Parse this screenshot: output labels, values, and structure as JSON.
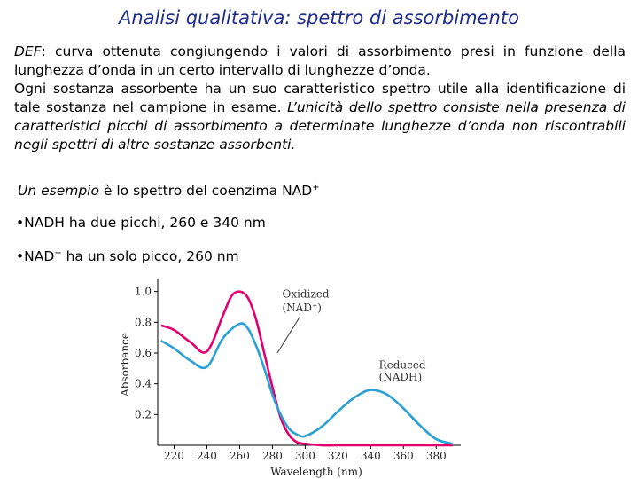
{
  "title": "Analisi qualitativa: spettro di assorbimento",
  "def": {
    "label": "DEF",
    "text1": ": curva ottenuta congiungendo i valori di assorbimento presi in funzione della lunghezza d’onda in un certo intervallo di lunghezze d’onda.",
    "text2": "Ogni sostanza assorbente ha un suo caratteristico spettro utile alla identificazione di tale sostanza nel campione in esame. ",
    "text3": "L’unicità dello spettro consiste nella presenza di caratteristici picchi di assorbimento a determinate lunghezze d’onda non riscontrabili negli spettri di altre sostanze assorbenti."
  },
  "example": {
    "prefix": "Un esempio",
    "rest": " è lo spettro del coenzima NAD",
    "sup": "+"
  },
  "bullets": [
    {
      "text": "•NADH ha due picchi, 260 e 340 nm",
      "sup": "",
      "rest": ""
    },
    {
      "text": "•NAD",
      "sup": "+",
      "rest": " ha un solo picco, 260 nm"
    }
  ],
  "chart_data": {
    "type": "line",
    "xlabel": "Wavelength (nm)",
    "ylabel": "Absorbance",
    "xlim": [
      210,
      395
    ],
    "ylim": [
      0,
      1.05
    ],
    "x_ticks": [
      220,
      240,
      260,
      280,
      300,
      320,
      340,
      360,
      380
    ],
    "y_ticks": [
      0.2,
      0.4,
      0.6,
      0.8,
      1.0
    ],
    "series": [
      {
        "name": "Oxidized (NAD⁺)",
        "color": "#e3006f",
        "x": [
          212,
          220,
          230,
          240,
          250,
          255,
          260,
          265,
          270,
          275,
          280,
          285,
          290,
          295,
          300,
          310,
          320,
          340,
          360,
          380,
          390
        ],
        "y": [
          0.78,
          0.75,
          0.67,
          0.61,
          0.85,
          0.97,
          1.0,
          0.96,
          0.82,
          0.6,
          0.38,
          0.18,
          0.07,
          0.02,
          0.01,
          0.0,
          0.0,
          0.0,
          0.0,
          0.0,
          0.0
        ]
      },
      {
        "name": "Reduced (NADH)",
        "color": "#2aa0d4",
        "x": [
          212,
          220,
          230,
          240,
          250,
          260,
          265,
          270,
          275,
          280,
          285,
          290,
          295,
          300,
          310,
          320,
          330,
          340,
          350,
          360,
          370,
          380,
          390
        ],
        "y": [
          0.68,
          0.63,
          0.55,
          0.51,
          0.7,
          0.79,
          0.76,
          0.65,
          0.5,
          0.33,
          0.2,
          0.11,
          0.07,
          0.06,
          0.12,
          0.22,
          0.31,
          0.36,
          0.33,
          0.24,
          0.13,
          0.04,
          0.01
        ]
      }
    ],
    "annotations": [
      {
        "line1": "Oxidized",
        "line2": "(NAD⁺)"
      },
      {
        "line1": "Reduced",
        "line2": "(NADH)"
      }
    ]
  }
}
